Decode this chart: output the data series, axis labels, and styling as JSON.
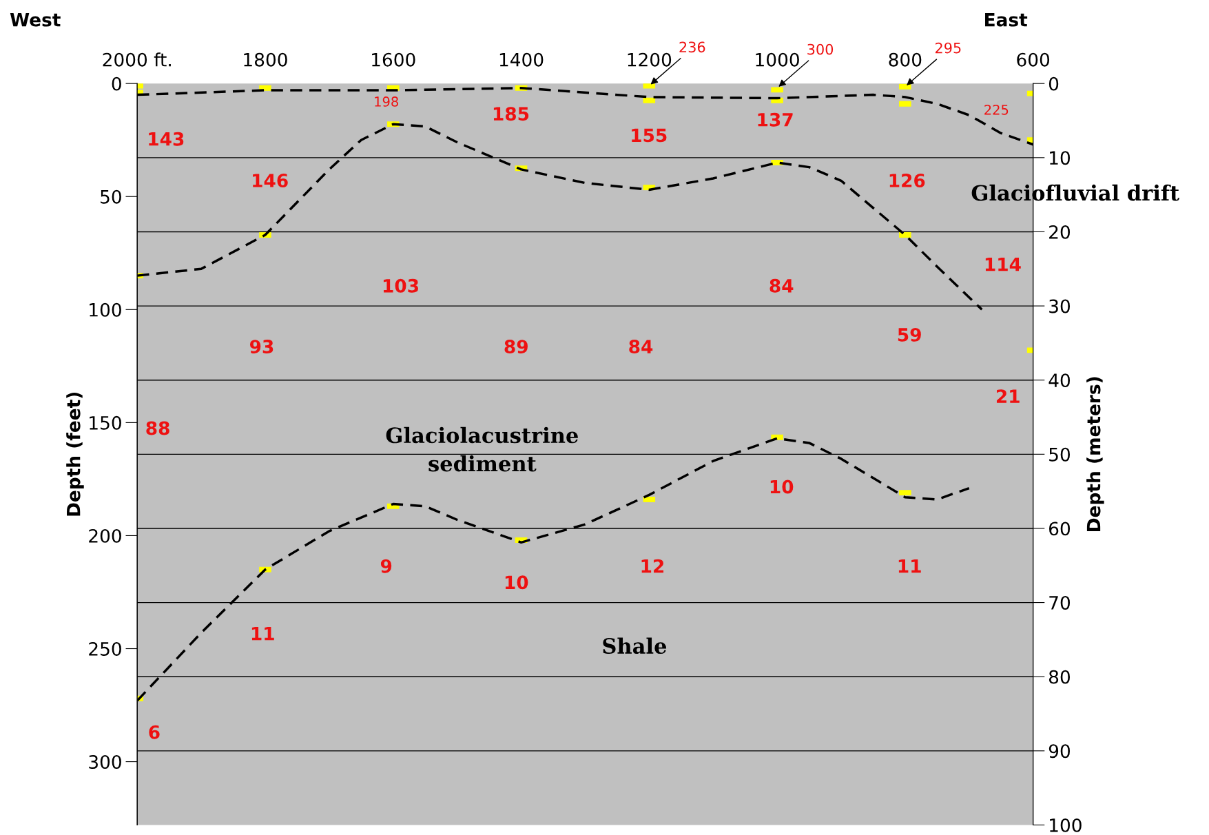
{
  "chart_data": {
    "type": "line",
    "ylabel": "Depth (feet)",
    "y2label": "Depth (meters)",
    "xlim": [
      2000,
      600
    ],
    "xticks": [
      {
        "value": 2000,
        "label": "2000 ft."
      },
      1800,
      1600,
      1400,
      1200,
      1000,
      800,
      600
    ],
    "ylim": [
      328,
      0
    ],
    "yticks": [
      0,
      50,
      100,
      150,
      200,
      250,
      300
    ],
    "y2lim": [
      100,
      0
    ],
    "y2ticks": [
      0,
      10,
      20,
      30,
      40,
      50,
      60,
      70,
      80,
      90,
      100
    ],
    "line_style": "dashed",
    "ref_lines": [
      {
        "axis": "y2",
        "value": 10,
        "color": "#000000"
      },
      {
        "axis": "y2",
        "value": 20,
        "color": "#000000"
      },
      {
        "axis": "y2",
        "value": 30,
        "color": "#000000"
      },
      {
        "axis": "y2",
        "value": 40,
        "color": "#000000"
      },
      {
        "axis": "y2",
        "value": 50,
        "color": "#000000"
      },
      {
        "axis": "y2",
        "value": 60,
        "color": "#000000"
      },
      {
        "axis": "y2",
        "value": 70,
        "color": "#000000"
      },
      {
        "axis": "y2",
        "value": 80,
        "color": "#000000"
      },
      {
        "axis": "y2",
        "value": 90,
        "color": "#000000"
      }
    ],
    "series": [
      {
        "color": "#000000",
        "x": [
          2000,
          1800,
          1600,
          1400,
          1200,
          1000,
          850,
          800,
          750,
          700,
          650,
          600
        ],
        "values": [
          5,
          3,
          3,
          2,
          6,
          6.5,
          5,
          6,
          9,
          14,
          22,
          27
        ]
      },
      {
        "color": "#000000",
        "x": [
          2000,
          1900,
          1800,
          1700,
          1650,
          1600,
          1550,
          1500,
          1400,
          1300,
          1200,
          1100,
          1000,
          950,
          900,
          800,
          750,
          680
        ],
        "values": [
          85,
          82,
          67,
          38,
          25,
          18,
          19,
          26,
          38,
          44,
          47,
          42,
          35,
          37,
          43,
          67,
          81,
          100
        ]
      },
      {
        "color": "#000000",
        "x": [
          2000,
          1900,
          1800,
          1700,
          1600,
          1550,
          1500,
          1400,
          1300,
          1200,
          1100,
          1000,
          950,
          900,
          800,
          750,
          700
        ],
        "values": [
          273,
          243,
          215,
          198,
          186,
          187,
          193,
          203,
          195,
          182,
          167,
          157,
          159,
          166,
          183,
          184,
          179
        ]
      },
      {
        "type": "scatter",
        "color": "#ffff00",
        "x": [
          2000,
          2000,
          1800,
          1600,
          1400,
          1200,
          1200,
          1000,
          1000,
          800,
          800,
          600,
          600,
          2000,
          1800,
          1600,
          1400,
          1200,
          1000,
          800,
          600,
          2000,
          1800,
          1600,
          1400,
          1200,
          1000,
          800
        ],
        "values": [
          1,
          4,
          2,
          2,
          2,
          1,
          7.5,
          2.8,
          7.5,
          1.4,
          9,
          4.4,
          25,
          85,
          67,
          18,
          37.5,
          46,
          35,
          67,
          118,
          272,
          215,
          187,
          202,
          184,
          156.5,
          181
        ]
      }
    ],
    "annotations": [
      "West",
      "East",
      "143",
      "146",
      "103",
      "93",
      "88",
      "6",
      "11",
      "9",
      "10",
      "12",
      "10",
      "11",
      "198",
      "185",
      "155",
      "137",
      "126",
      "114",
      "84",
      "89",
      "84",
      "59",
      "21",
      "225",
      "Glaciofluvial drift",
      "Glaciolacustrine\nsediment",
      "Shale",
      {
        "text": "236",
        "x": 1200,
        "y": 1
      },
      {
        "text": "300",
        "x": 1000,
        "y": 2
      },
      {
        "text": "295",
        "x": 800,
        "y": 1.4
      }
    ]
  }
}
